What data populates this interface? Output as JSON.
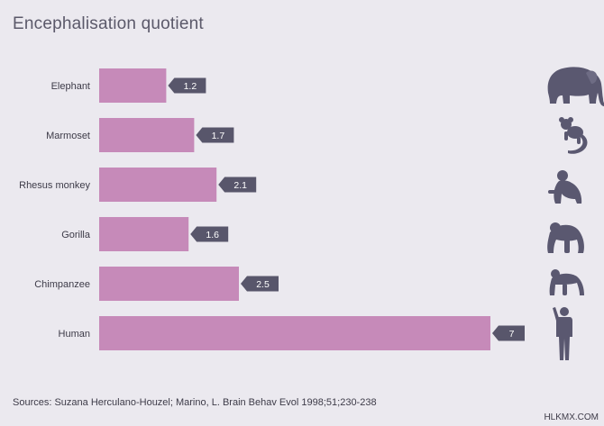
{
  "chart_data": {
    "type": "bar",
    "orientation": "horizontal",
    "title": "Encephalisation quotient",
    "categories": [
      "Elephant",
      "Marmoset",
      "Rhesus monkey",
      "Gorilla",
      "Chimpanzee",
      "Human"
    ],
    "values": [
      1.2,
      1.7,
      2.1,
      1.6,
      2.5,
      7
    ],
    "value_labels": [
      "1.2",
      "1.7",
      "2.1",
      "1.6",
      "2.5",
      "7"
    ],
    "icons": [
      "elephant-icon",
      "marmoset-icon",
      "rhesus-monkey-icon",
      "gorilla-icon",
      "chimpanzee-icon",
      "human-icon"
    ],
    "xlim": [
      0,
      7
    ],
    "grid": false,
    "legend": "none",
    "colors": {
      "bar": "#c68ab9",
      "label_bg": "#58566b",
      "label_text": "#ffffff",
      "icon": "#5a5870",
      "background": "#ebe9ef"
    }
  },
  "footer": {
    "source": "Sources: Suzana Herculano-Houzel; Marino, L. Brain Behav Evol 1998;51;230-238",
    "credit": "HLKMX.COM"
  }
}
